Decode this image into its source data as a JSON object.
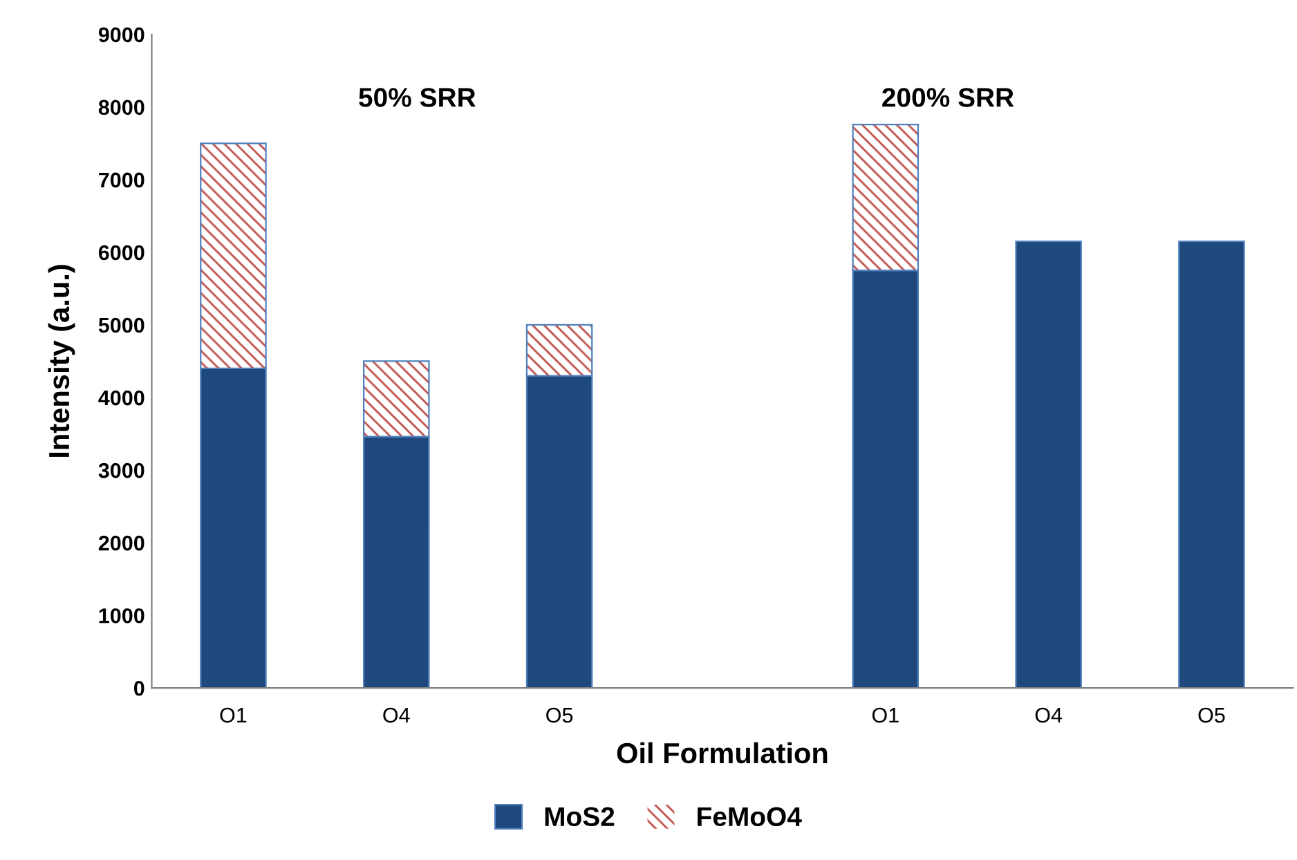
{
  "chart_data": {
    "type": "bar",
    "stacked": true,
    "xlabel": "Oil Formulation",
    "ylabel": "Intensity (a.u.)",
    "categories": [
      "O1",
      "O4",
      "O5",
      null,
      "O1",
      "O4",
      "O5"
    ],
    "series": [
      {
        "name": "MoS2",
        "color": "#1f497d",
        "values": [
          4400,
          3460,
          4300,
          null,
          5750,
          6150,
          6150
        ]
      },
      {
        "name": "FeMoO4",
        "color": "#c0504d",
        "values": [
          3100,
          1040,
          700,
          null,
          2010,
          null,
          null
        ]
      }
    ],
    "annotations": [
      "50% SRR",
      "200% SRR"
    ],
    "ylim": [
      0,
      9000
    ],
    "yticks": [
      0,
      1000,
      2000,
      3000,
      4000,
      5000,
      6000,
      7000,
      8000,
      9000
    ],
    "grid": false,
    "legend": "bottom"
  }
}
